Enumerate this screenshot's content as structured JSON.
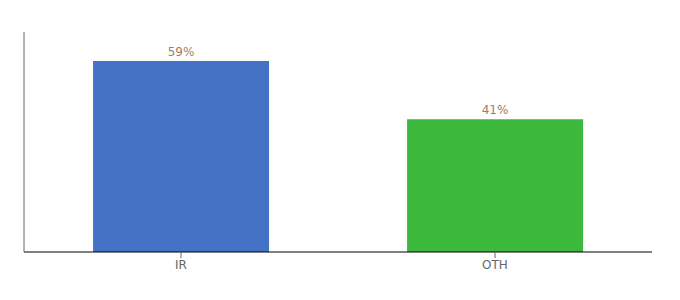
{
  "chart_data": {
    "type": "bar",
    "categories": [
      "IR",
      "OTH"
    ],
    "values": [
      59,
      41
    ],
    "value_labels": [
      "59%",
      "41%"
    ],
    "colors": [
      "#4472c4",
      "#3cb83c"
    ],
    "ylim": [
      0,
      68
    ],
    "grid": false,
    "data_labels": true,
    "tick_labels": "x"
  }
}
